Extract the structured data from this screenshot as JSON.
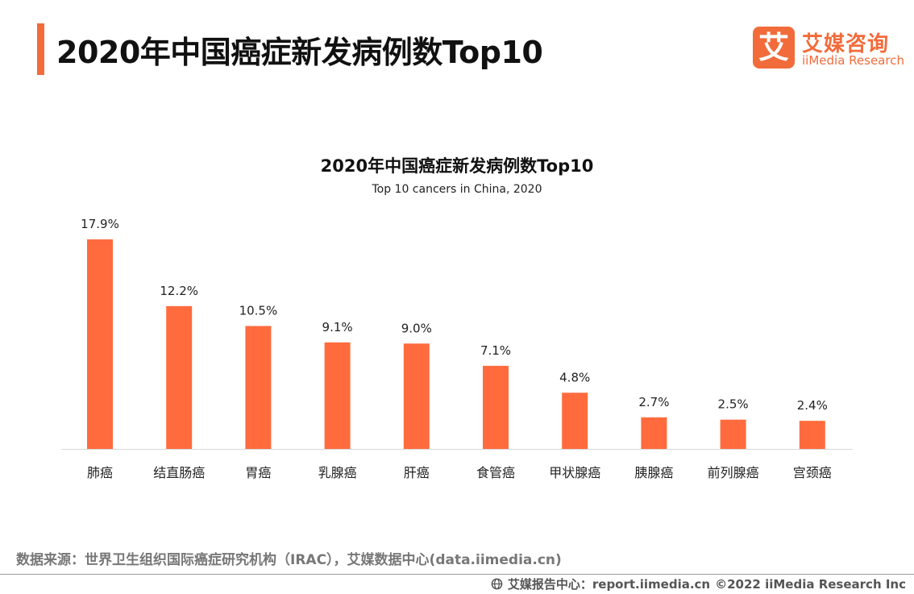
{
  "header": {
    "title": "2020年中国癌症新发病例数Top10"
  },
  "logo": {
    "mark": "艾",
    "name": "艾媒咨询",
    "sub": "iiMedia Research"
  },
  "colors": {
    "accent": "#F26B3A",
    "bar": "#FF6B3D",
    "axis": "#D9D9D9"
  },
  "chart_data": {
    "type": "bar",
    "title": "2020年中国癌症新发病例数Top10",
    "subtitle": "Top 10 cancers in China, 2020",
    "categories": [
      "肺癌",
      "结直肠癌",
      "胃癌",
      "乳腺癌",
      "肝癌",
      "食管癌",
      "甲状腺癌",
      "胰腺癌",
      "前列腺癌",
      "宫颈癌"
    ],
    "values": [
      17.9,
      12.2,
      10.5,
      9.1,
      9.0,
      7.1,
      4.8,
      2.7,
      2.5,
      2.4
    ],
    "value_labels": [
      "17.9%",
      "12.2%",
      "10.5%",
      "9.1%",
      "9.0%",
      "7.1%",
      "4.8%",
      "2.7%",
      "2.5%",
      "2.4%"
    ],
    "xlabel": "",
    "ylabel": "",
    "ylim": [
      0,
      17.9
    ],
    "grid": false,
    "legend": "none"
  },
  "footer": {
    "source": "数据来源：世界卫生组织国际癌症研究机构（IRAC），艾媒数据中心(data.iimedia.cn)",
    "report": "艾媒报告中心：report.iimedia.cn",
    "copyright": "©2022  iiMedia Research  Inc"
  }
}
